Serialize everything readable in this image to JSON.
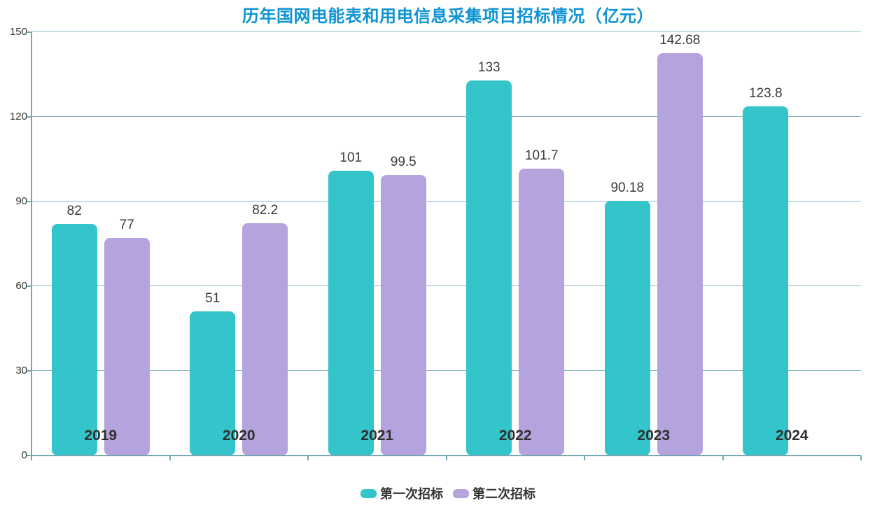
{
  "title": "历年国网电能表和用电信息采集项目招标情况（亿元）",
  "chart_data": {
    "type": "bar",
    "title": "历年国网电能表和用电信息采集项目招标情况（亿元）",
    "categories": [
      "2019",
      "2020",
      "2021",
      "2022",
      "2023",
      "2024"
    ],
    "series": [
      {
        "name": "第一次招标",
        "color": "#33c5c9",
        "values": [
          82,
          51,
          101,
          133,
          90.18,
          123.8
        ]
      },
      {
        "name": "第二次招标",
        "color": "#b5a3de",
        "values": [
          77,
          82.2,
          99.5,
          101.7,
          142.68,
          null
        ]
      }
    ],
    "data_labels": [
      [
        "82",
        "51",
        "101",
        "133",
        "90.18",
        "123.8"
      ],
      [
        "77",
        "82.2",
        "99.5",
        "101.7",
        "142.68",
        ""
      ]
    ],
    "xlabel": "",
    "ylabel": "",
    "ylim": [
      0,
      150
    ],
    "y_ticks": [
      0,
      30,
      60,
      90,
      120,
      150
    ],
    "grid": true,
    "legend_position": "bottom"
  },
  "colors": {
    "title": "#0e93d3",
    "axis_line": "#76a7b5",
    "gridline": "#8cb9c6",
    "text": "#333333",
    "series1": "#33c5c9",
    "series2": "#b5a3de"
  }
}
